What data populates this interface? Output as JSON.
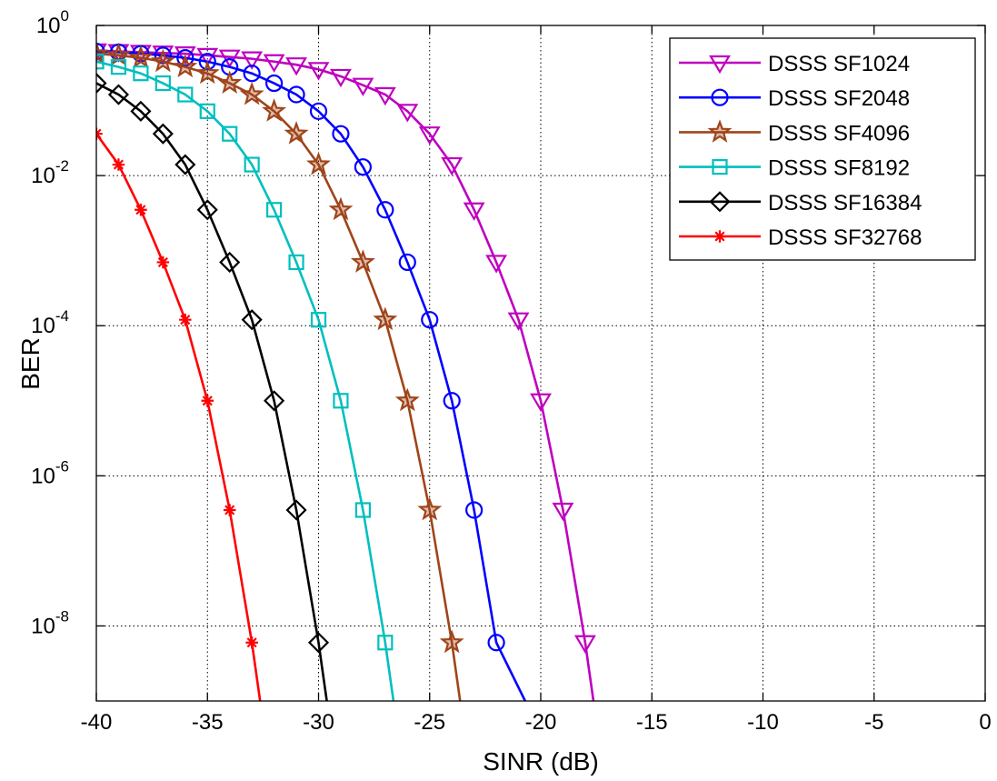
{
  "chart_data": {
    "type": "line",
    "xlabel": "SINR (dB)",
    "ylabel": "BER",
    "xlim": [
      -40,
      0
    ],
    "ylim": [
      1e-09,
      1
    ],
    "yscale": "log",
    "grid": true,
    "legend_position": "top-right",
    "x_ticks": [
      {
        "value": -40,
        "label": "-40"
      },
      {
        "value": -35,
        "label": "-35"
      },
      {
        "value": -30,
        "label": "-30"
      },
      {
        "value": -25,
        "label": "-25"
      },
      {
        "value": -20,
        "label": "-20"
      },
      {
        "value": -15,
        "label": "-15"
      },
      {
        "value": -10,
        "label": "-10"
      },
      {
        "value": -5,
        "label": "-5"
      },
      {
        "value": 0,
        "label": "0"
      }
    ],
    "y_ticks": [
      {
        "value": 1,
        "base": "10",
        "exp": "0"
      },
      {
        "value": 0.01,
        "base": "10",
        "exp": "-2"
      },
      {
        "value": 0.0001,
        "base": "10",
        "exp": "-4"
      },
      {
        "value": 1e-06,
        "base": "10",
        "exp": "-6"
      },
      {
        "value": 1e-08,
        "base": "10",
        "exp": "-8"
      }
    ],
    "series": [
      {
        "name": "DSSS SF1024",
        "color": "#bf00bf",
        "marker": "triangle-down",
        "x": [
          -40,
          -39,
          -38,
          -37,
          -36,
          -35,
          -34,
          -33,
          -32,
          -31,
          -30,
          -29,
          -28,
          -27,
          -26,
          -25,
          -24,
          -23,
          -22,
          -21,
          -20,
          -19,
          -18
        ],
        "y": [
          0.46,
          0.45,
          0.44,
          0.43,
          0.42,
          0.4,
          0.38,
          0.36,
          0.33,
          0.3,
          0.26,
          0.21,
          0.16,
          0.12,
          0.072,
          0.036,
          0.014,
          0.0035,
          0.0007,
          0.00012,
          1e-05,
          3.5e-07,
          6e-09
        ],
        "line_end_x": -17.6
      },
      {
        "name": "DSSS SF2048",
        "color": "#0000ff",
        "marker": "circle",
        "x": [
          -40,
          -39,
          -38,
          -37,
          -36,
          -35,
          -34,
          -33,
          -32,
          -31,
          -30,
          -29,
          -28,
          -27,
          -26,
          -25,
          -24,
          -23,
          -22,
          -21
        ],
        "y": [
          0.45,
          0.44,
          0.42,
          0.4,
          0.37,
          0.33,
          0.28,
          0.23,
          0.17,
          0.12,
          0.072,
          0.036,
          0.013,
          0.0035,
          0.0007,
          0.00012,
          1e-05,
          3.5e-07,
          6e-09,
          0
        ],
        "points": 19,
        "line_end_x": -20.6
      },
      {
        "name": "DSSS SF4096",
        "color": "#a0441a",
        "marker": "star",
        "x": [
          -40,
          -39,
          -38,
          -37,
          -36,
          -35,
          -34,
          -33,
          -32,
          -31,
          -30,
          -29,
          -28,
          -27,
          -26,
          -25,
          -24
        ],
        "y": [
          0.42,
          0.4,
          0.37,
          0.33,
          0.28,
          0.23,
          0.17,
          0.12,
          0.072,
          0.036,
          0.014,
          0.0035,
          0.0007,
          0.00012,
          1e-05,
          3.5e-07,
          6e-09
        ],
        "line_end_x": -23.6
      },
      {
        "name": "DSSS SF8192",
        "color": "#00bfbf",
        "marker": "square",
        "x": [
          -40,
          -39,
          -38,
          -37,
          -36,
          -35,
          -34,
          -33,
          -32,
          -31,
          -30,
          -29,
          -28,
          -27
        ],
        "y": [
          0.33,
          0.28,
          0.23,
          0.17,
          0.12,
          0.072,
          0.036,
          0.014,
          0.0035,
          0.0007,
          0.00012,
          1e-05,
          3.5e-07,
          6e-09
        ],
        "line_end_x": -26.6
      },
      {
        "name": "DSSS SF16384",
        "color": "#000000",
        "marker": "diamond",
        "x": [
          -40,
          -39,
          -38,
          -37,
          -36,
          -35,
          -34,
          -33,
          -32,
          -31,
          -30
        ],
        "y": [
          0.17,
          0.12,
          0.072,
          0.036,
          0.014,
          0.0035,
          0.0007,
          0.00012,
          1e-05,
          3.5e-07,
          6e-09
        ],
        "line_end_x": -29.6
      },
      {
        "name": "DSSS SF32768",
        "color": "#ff0000",
        "marker": "asterisk",
        "x": [
          -40,
          -39,
          -38,
          -37,
          -36,
          -35,
          -34,
          -33
        ],
        "y": [
          0.036,
          0.014,
          0.0035,
          0.0007,
          0.00012,
          1e-05,
          3.5e-07,
          6e-09
        ],
        "line_end_x": -32.6
      }
    ]
  }
}
